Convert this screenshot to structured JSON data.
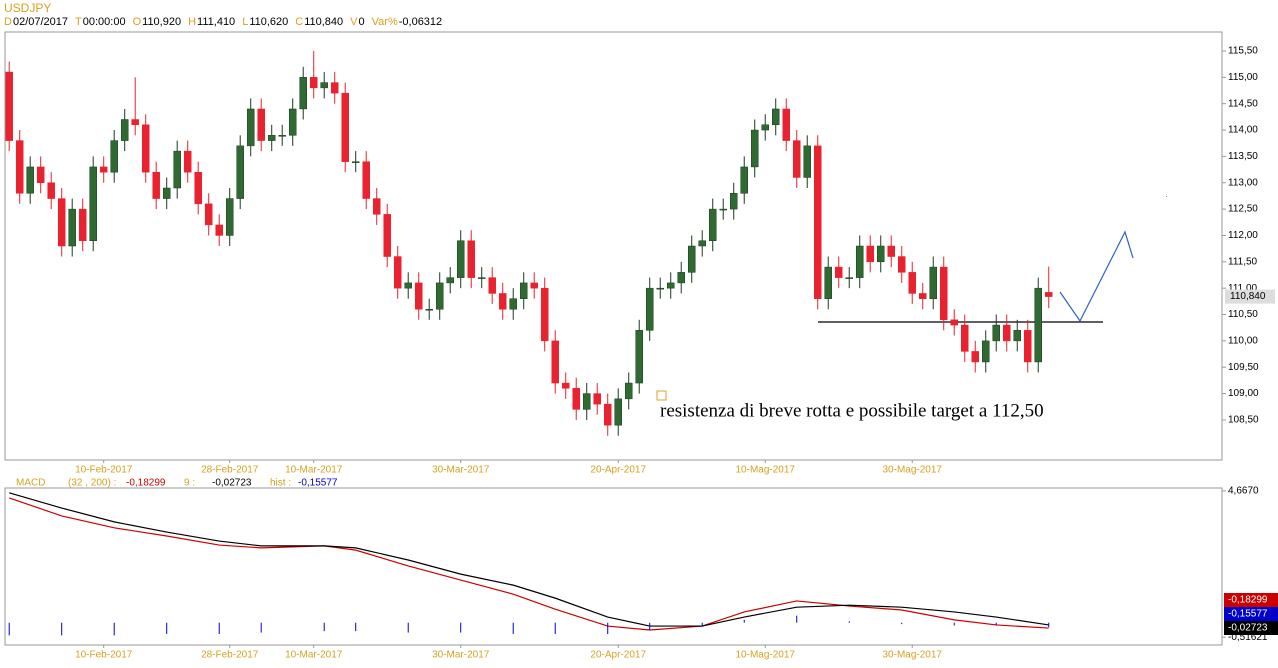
{
  "chart_data": [
    {
      "type": "candlestick",
      "title": "USDJPY",
      "header": [
        {
          "key": "D",
          "value": "02/07/2017"
        },
        {
          "key": "T",
          "value": "00:00:00"
        },
        {
          "key": "O",
          "value": "110,920"
        },
        {
          "key": "H",
          "value": "111,410"
        },
        {
          "key": "L",
          "value": "110,620"
        },
        {
          "key": "C",
          "value": "110,840"
        },
        {
          "key": "V",
          "value": "0"
        },
        {
          "key": "Var%",
          "value": "-0,06312"
        }
      ],
      "open": [
        115.1,
        113.8,
        112.8,
        113.3,
        113.0,
        112.7,
        111.8,
        112.5,
        111.9,
        113.3,
        113.2,
        113.8,
        114.2,
        114.1,
        113.2,
        112.7,
        112.9,
        113.6,
        113.2,
        112.6,
        112.2,
        112.0,
        112.7,
        113.7,
        114.4,
        113.8,
        113.9,
        113.9,
        114.4,
        115.0,
        114.8,
        114.9,
        114.7,
        113.4,
        113.4,
        112.7,
        112.4,
        111.6,
        111.0,
        111.1,
        110.6,
        110.6,
        111.1,
        111.2,
        111.9,
        111.2,
        111.2,
        110.9,
        110.6,
        110.8,
        111.1,
        111.0,
        110.0,
        109.2,
        109.1,
        108.7,
        109.0,
        108.8,
        108.4,
        108.9,
        109.2,
        110.2,
        111.0,
        111.0,
        111.1,
        111.3,
        111.8,
        111.9,
        112.5,
        112.5,
        112.8,
        113.3,
        114.0,
        114.1,
        114.4,
        113.8,
        113.1,
        113.7,
        110.8,
        111.4,
        111.2,
        111.2,
        111.8,
        111.5,
        111.8,
        111.6,
        111.3,
        110.9,
        110.8,
        111.4,
        110.4,
        110.3,
        109.8,
        109.6,
        110.0,
        110.3,
        110.0,
        110.2,
        109.6,
        110.92
      ],
      "high": [
        115.3,
        114.0,
        113.5,
        113.5,
        113.2,
        112.9,
        112.7,
        112.7,
        113.5,
        113.5,
        114.0,
        114.4,
        115.0,
        114.3,
        113.4,
        113.1,
        113.8,
        113.8,
        113.4,
        112.8,
        112.4,
        112.9,
        113.9,
        114.6,
        114.6,
        114.1,
        114.1,
        114.6,
        115.2,
        115.5,
        115.1,
        115.1,
        114.9,
        113.6,
        113.6,
        112.9,
        112.6,
        111.8,
        111.3,
        111.3,
        110.8,
        111.3,
        111.4,
        112.1,
        112.1,
        111.4,
        111.4,
        111.1,
        111.0,
        111.3,
        111.3,
        111.2,
        110.2,
        109.4,
        109.3,
        109.2,
        109.2,
        109.0,
        109.1,
        109.4,
        110.4,
        111.2,
        111.2,
        111.3,
        111.5,
        112.0,
        112.1,
        112.7,
        112.7,
        113.0,
        113.5,
        114.2,
        114.3,
        114.6,
        114.6,
        114.0,
        113.9,
        113.9,
        111.6,
        111.6,
        111.4,
        112.0,
        112.0,
        112.0,
        112.0,
        111.8,
        111.5,
        111.1,
        111.6,
        111.6,
        110.6,
        110.5,
        110.0,
        110.2,
        110.5,
        110.5,
        110.4,
        110.4,
        111.2,
        111.41
      ],
      "low": [
        113.6,
        112.6,
        112.6,
        112.8,
        112.5,
        111.6,
        111.6,
        111.7,
        111.7,
        113.0,
        113.0,
        113.6,
        113.9,
        113.0,
        112.5,
        112.5,
        112.7,
        113.0,
        112.4,
        112.0,
        111.8,
        111.8,
        112.5,
        113.5,
        113.6,
        113.6,
        113.7,
        113.7,
        114.2,
        114.6,
        114.6,
        114.5,
        113.2,
        113.2,
        112.5,
        112.2,
        111.4,
        110.8,
        110.8,
        110.4,
        110.4,
        110.4,
        110.9,
        111.0,
        111.0,
        111.0,
        110.7,
        110.4,
        110.4,
        110.6,
        110.8,
        109.8,
        109.0,
        108.9,
        108.5,
        108.5,
        108.6,
        108.2,
        108.2,
        108.7,
        109.0,
        110.0,
        110.8,
        110.8,
        110.9,
        111.1,
        111.6,
        111.7,
        112.3,
        112.3,
        112.6,
        113.1,
        113.8,
        113.9,
        113.6,
        112.9,
        112.9,
        110.6,
        110.6,
        111.0,
        111.0,
        111.0,
        111.3,
        111.3,
        111.4,
        111.1,
        110.7,
        110.6,
        110.6,
        110.2,
        110.1,
        109.6,
        109.4,
        109.4,
        109.8,
        109.8,
        109.8,
        109.4,
        109.4,
        110.62
      ],
      "close": [
        113.8,
        112.8,
        113.3,
        113.0,
        112.7,
        111.8,
        112.5,
        111.9,
        113.3,
        113.2,
        113.8,
        114.2,
        114.1,
        113.2,
        112.7,
        112.9,
        113.6,
        113.2,
        112.6,
        112.2,
        112.0,
        112.7,
        113.7,
        114.4,
        113.8,
        113.9,
        113.9,
        114.4,
        115.0,
        114.8,
        114.9,
        114.7,
        113.4,
        113.4,
        112.7,
        112.4,
        111.6,
        111.0,
        111.1,
        110.6,
        110.6,
        111.1,
        111.2,
        111.9,
        111.2,
        111.2,
        110.9,
        110.6,
        110.8,
        111.1,
        111.0,
        110.0,
        109.2,
        109.1,
        108.7,
        109.0,
        108.8,
        108.4,
        108.9,
        109.2,
        110.2,
        111.0,
        111.0,
        111.1,
        111.3,
        111.8,
        111.9,
        112.5,
        112.5,
        112.8,
        113.3,
        114.0,
        114.1,
        114.4,
        113.8,
        113.1,
        113.7,
        110.8,
        111.4,
        111.2,
        111.2,
        111.8,
        111.5,
        111.8,
        111.6,
        111.3,
        110.9,
        110.8,
        111.4,
        110.4,
        110.3,
        109.8,
        109.6,
        110.0,
        110.3,
        110.0,
        110.2,
        109.6,
        111.0,
        110.84
      ],
      "up_color": "#2f6a32",
      "down_color": "#e8222e",
      "last_label": "110,840",
      "annotation": "resistenza di breve rotta e possibile target a 112,50",
      "xlim": [
        -0.4,
        115.5
      ],
      "xticks": [
        {
          "value": 9,
          "label": "10-Feb-2017"
        },
        {
          "value": 21,
          "label": "28-Feb-2017"
        },
        {
          "value": 29,
          "label": "10-Mar-2017"
        },
        {
          "value": 43,
          "label": "30-Mar-2017"
        },
        {
          "value": 58,
          "label": "20-Apr-2017"
        },
        {
          "value": 72,
          "label": "10-Mag-2017"
        },
        {
          "value": 86,
          "label": "30-Mag-2017"
        }
      ],
      "ylim": [
        107.74,
        115.86
      ],
      "yticks": [
        {
          "value": 108.5,
          "label": "108,50"
        },
        {
          "value": 109,
          "label": "109,00"
        },
        {
          "value": 109.5,
          "label": "109,50"
        },
        {
          "value": 110,
          "label": "110,00"
        },
        {
          "value": 110.5,
          "label": "110,50"
        },
        {
          "value": 111,
          "label": "111,00"
        },
        {
          "value": 111.5,
          "label": "111,50"
        },
        {
          "value": 112,
          "label": "112,00"
        },
        {
          "value": 112.5,
          "label": "112,50"
        },
        {
          "value": 113,
          "label": "113,00"
        },
        {
          "value": 113.5,
          "label": "113,50"
        },
        {
          "value": 114,
          "label": "114,00"
        },
        {
          "value": 114.5,
          "label": "114,50"
        },
        {
          "value": 115,
          "label": "115,00"
        },
        {
          "value": 115.5,
          "label": "115,50"
        }
      ]
    },
    {
      "type": "macd",
      "title": "MACD",
      "x": [
        0,
        5,
        10,
        15,
        20,
        24,
        30,
        33,
        38,
        43,
        48,
        52,
        57,
        61,
        66,
        70,
        75,
        80,
        85,
        90,
        94,
        99
      ],
      "series": [
        {
          "name": "(32 , 200) :",
          "value_label": "-0,18299",
          "color": "#cc0000",
          "values": [
            4.42,
            3.78,
            3.36,
            3.07,
            2.75,
            2.65,
            2.72,
            2.57,
            2.01,
            1.51,
            1.01,
            0.48,
            -0.12,
            -0.26,
            -0.12,
            0.38,
            0.77,
            0.59,
            0.45,
            0.1,
            -0.08,
            -0.19
          ]
        },
        {
          "name": "9 :",
          "value_label": "-0,02723",
          "color": "#000000",
          "values": [
            4.6,
            4.06,
            3.57,
            3.21,
            2.89,
            2.72,
            2.72,
            2.65,
            2.22,
            1.72,
            1.33,
            0.87,
            0.2,
            -0.12,
            -0.12,
            0.2,
            0.55,
            0.62,
            0.55,
            0.38,
            0.2,
            -0.08
          ]
        },
        {
          "name": "hist :",
          "value_label": "-0,15577",
          "color": "#0000cc",
          "values": [
            -0.45,
            -0.45,
            -0.45,
            -0.4,
            -0.4,
            -0.35,
            -0.3,
            -0.3,
            -0.35,
            -0.35,
            -0.4,
            -0.4,
            -0.4,
            -0.25,
            -0.1,
            0.1,
            0.25,
            0.05,
            -0.05,
            -0.1,
            -0.1,
            -0.16
          ]
        }
      ],
      "xlim": [
        -0.4,
        115.5
      ],
      "xticks": [
        {
          "value": 9,
          "label": "10-Feb-2017"
        },
        {
          "value": 21,
          "label": "28-Feb-2017"
        },
        {
          "value": 29,
          "label": "10-Mar-2017"
        },
        {
          "value": 43,
          "label": "30-Mar-2017"
        },
        {
          "value": 58,
          "label": "20-Apr-2017"
        },
        {
          "value": 72,
          "label": "10-Mag-2017"
        },
        {
          "value": 86,
          "label": "30-Mag-2017"
        }
      ],
      "ylim": [
        -0.79,
        4.77
      ],
      "yticks": [
        {
          "value": 4.667,
          "label": "4,6670"
        },
        {
          "value": -0.51621,
          "label": "-0,51621"
        }
      ]
    }
  ]
}
